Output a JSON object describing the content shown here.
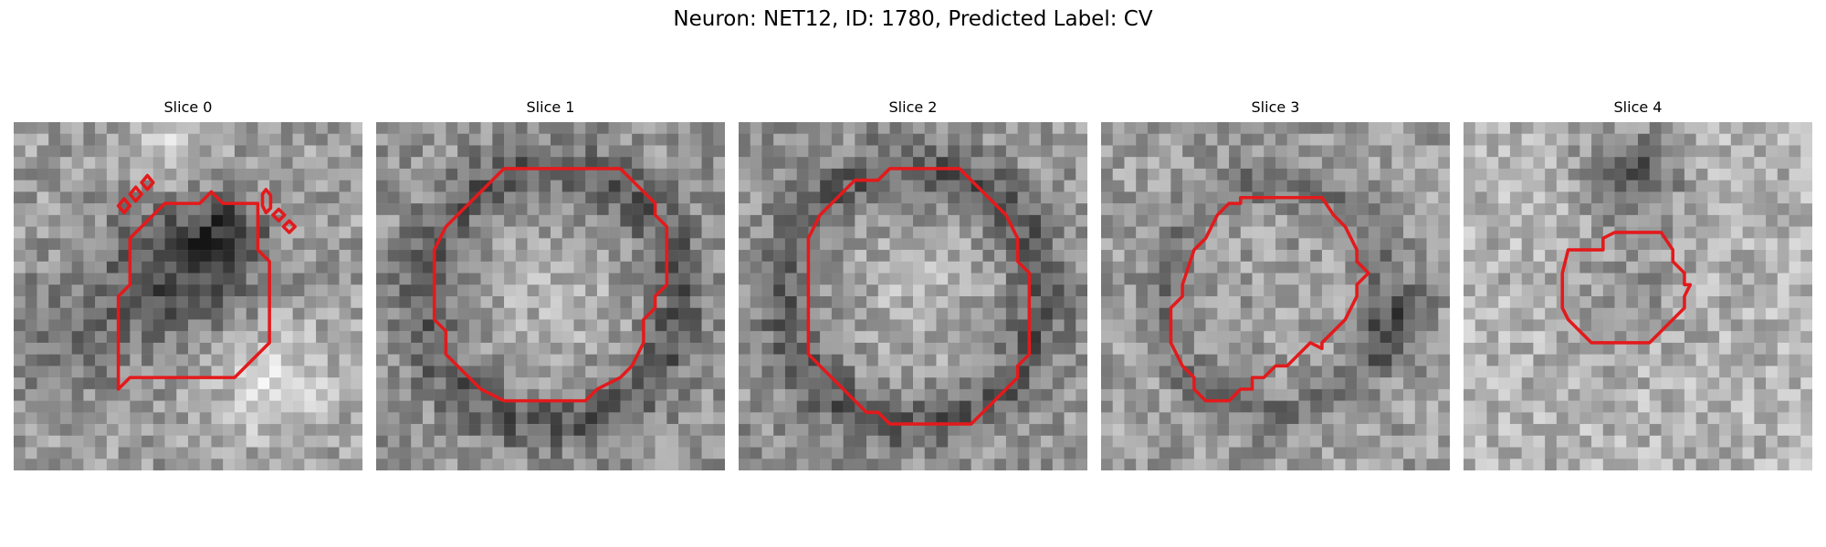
{
  "figure": {
    "title": "Neuron: NET12, ID: 1780, Predicted Label: CV",
    "contour_color": "#e31a1c",
    "colormap": "grayscale",
    "grid_size": 30,
    "slices": [
      {
        "title": "Slice 0",
        "seed": 11,
        "style": "dark-center"
      },
      {
        "title": "Slice 1",
        "seed": 23,
        "style": "ring"
      },
      {
        "title": "Slice 2",
        "seed": 37,
        "style": "ring"
      },
      {
        "title": "Slice 3",
        "seed": 49,
        "style": "faint-ring"
      },
      {
        "title": "Slice 4",
        "seed": 61,
        "style": "light"
      }
    ]
  }
}
